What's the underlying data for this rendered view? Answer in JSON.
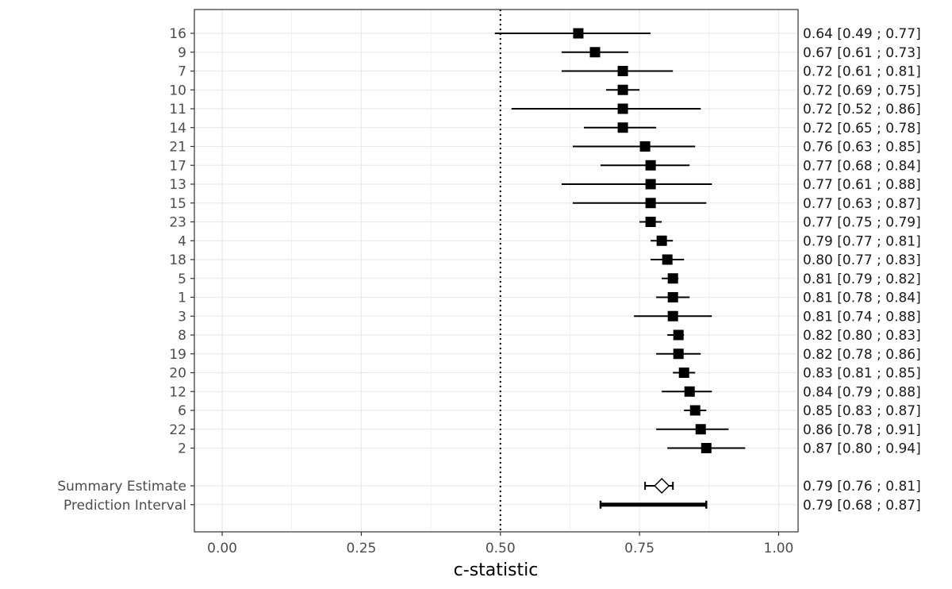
{
  "chart_data": {
    "type": "forest",
    "xlabel": "c-statistic",
    "xlim": [
      -0.05,
      1.035
    ],
    "xticks": [
      0.0,
      0.25,
      0.5,
      0.75,
      1.0
    ],
    "xtick_labels": [
      "0.00",
      "0.25",
      "0.50",
      "0.75",
      "1.00"
    ],
    "reference_line": 0.5,
    "grid": true,
    "studies": [
      {
        "label": "16",
        "est": 0.64,
        "lo": 0.49,
        "hi": 0.77,
        "text": "0.64 [0.49 ; 0.77]"
      },
      {
        "label": "9",
        "est": 0.67,
        "lo": 0.61,
        "hi": 0.73,
        "text": "0.67 [0.61 ; 0.73]"
      },
      {
        "label": "7",
        "est": 0.72,
        "lo": 0.61,
        "hi": 0.81,
        "text": "0.72 [0.61 ; 0.81]"
      },
      {
        "label": "10",
        "est": 0.72,
        "lo": 0.69,
        "hi": 0.75,
        "text": "0.72 [0.69 ; 0.75]"
      },
      {
        "label": "11",
        "est": 0.72,
        "lo": 0.52,
        "hi": 0.86,
        "text": "0.72 [0.52 ; 0.86]"
      },
      {
        "label": "14",
        "est": 0.72,
        "lo": 0.65,
        "hi": 0.78,
        "text": "0.72 [0.65 ; 0.78]"
      },
      {
        "label": "21",
        "est": 0.76,
        "lo": 0.63,
        "hi": 0.85,
        "text": "0.76 [0.63 ; 0.85]"
      },
      {
        "label": "17",
        "est": 0.77,
        "lo": 0.68,
        "hi": 0.84,
        "text": "0.77 [0.68 ; 0.84]"
      },
      {
        "label": "13",
        "est": 0.77,
        "lo": 0.61,
        "hi": 0.88,
        "text": "0.77 [0.61 ; 0.88]"
      },
      {
        "label": "15",
        "est": 0.77,
        "lo": 0.63,
        "hi": 0.87,
        "text": "0.77 [0.63 ; 0.87]"
      },
      {
        "label": "23",
        "est": 0.77,
        "lo": 0.75,
        "hi": 0.79,
        "text": "0.77 [0.75 ; 0.79]"
      },
      {
        "label": "4",
        "est": 0.79,
        "lo": 0.77,
        "hi": 0.81,
        "text": "0.79 [0.77 ; 0.81]"
      },
      {
        "label": "18",
        "est": 0.8,
        "lo": 0.77,
        "hi": 0.83,
        "text": "0.80 [0.77 ; 0.83]"
      },
      {
        "label": "5",
        "est": 0.81,
        "lo": 0.79,
        "hi": 0.82,
        "text": "0.81 [0.79 ; 0.82]"
      },
      {
        "label": "1",
        "est": 0.81,
        "lo": 0.78,
        "hi": 0.84,
        "text": "0.81 [0.78 ; 0.84]"
      },
      {
        "label": "3",
        "est": 0.81,
        "lo": 0.74,
        "hi": 0.88,
        "text": "0.81 [0.74 ; 0.88]"
      },
      {
        "label": "8",
        "est": 0.82,
        "lo": 0.8,
        "hi": 0.83,
        "text": "0.82 [0.80 ; 0.83]"
      },
      {
        "label": "19",
        "est": 0.82,
        "lo": 0.78,
        "hi": 0.86,
        "text": "0.82 [0.78 ; 0.86]"
      },
      {
        "label": "20",
        "est": 0.83,
        "lo": 0.81,
        "hi": 0.85,
        "text": "0.83 [0.81 ; 0.85]"
      },
      {
        "label": "12",
        "est": 0.84,
        "lo": 0.79,
        "hi": 0.88,
        "text": "0.84 [0.79 ; 0.88]"
      },
      {
        "label": "6",
        "est": 0.85,
        "lo": 0.83,
        "hi": 0.87,
        "text": "0.85 [0.83 ; 0.87]"
      },
      {
        "label": "22",
        "est": 0.86,
        "lo": 0.78,
        "hi": 0.91,
        "text": "0.86 [0.78 ; 0.91]"
      },
      {
        "label": "2",
        "est": 0.87,
        "lo": 0.8,
        "hi": 0.94,
        "text": "0.87 [0.80 ; 0.94]"
      }
    ],
    "summary": {
      "label": "Summary Estimate",
      "est": 0.79,
      "lo": 0.76,
      "hi": 0.81,
      "text": "0.79 [0.76 ; 0.81]"
    },
    "prediction": {
      "label": "Prediction Interval",
      "est": 0.79,
      "lo": 0.68,
      "hi": 0.87,
      "text": "0.79 [0.68 ; 0.87]"
    },
    "colors": {
      "marker": "#000000",
      "grid": "#ebebeb",
      "panel_border": "#333333"
    }
  }
}
